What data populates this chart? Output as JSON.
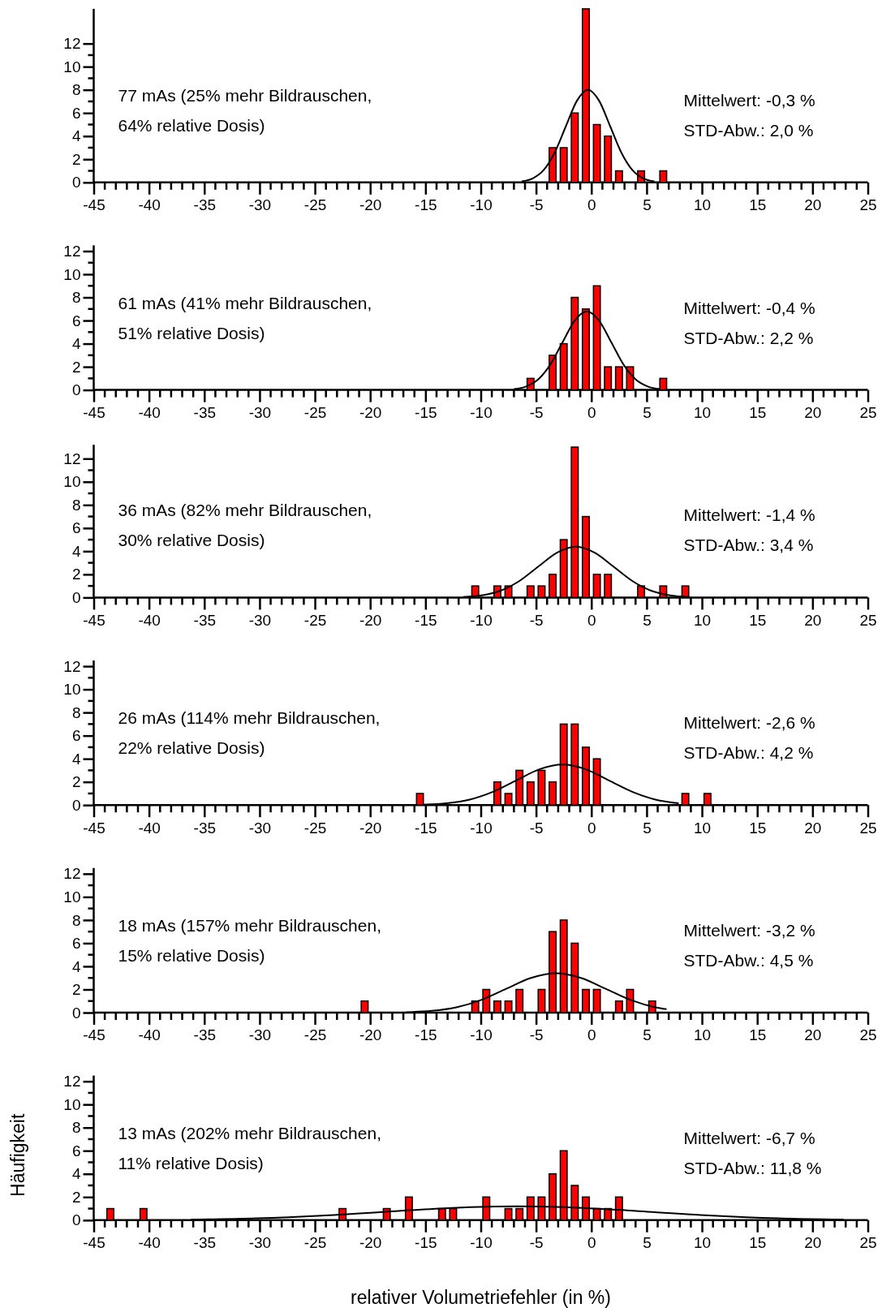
{
  "chart_data": [
    {
      "type": "histogram",
      "bins": [
        -4,
        -3,
        -2,
        -1,
        0,
        1,
        2,
        3,
        4,
        5,
        6,
        7
      ],
      "values": [
        3,
        3,
        6,
        15,
        5,
        4,
        1,
        0,
        1,
        0,
        1
      ],
      "color": "#ff0000",
      "series": [
        {
          "type": "line",
          "color": "#000000",
          "x": [
            -6.3,
            -5.3,
            -4.3,
            -3.3,
            -2.3,
            -1.3,
            -0.3,
            0.7,
            1.7,
            2.7,
            3.7,
            4.7,
            5.7
          ],
          "values": [
            0.09,
            0.35,
            1.08,
            2.6,
            4.86,
            7.06,
            8,
            7.06,
            4.86,
            2.6,
            1.08,
            0.35,
            0.09
          ]
        }
      ],
      "xlim": [
        -45,
        25
      ],
      "xticks": [
        -45,
        -40,
        -35,
        -30,
        -25,
        -20,
        -15,
        -10,
        -5,
        0,
        5,
        10,
        15,
        20,
        25
      ],
      "ylim": [
        0,
        15
      ],
      "yticks": [
        0,
        2,
        4,
        6,
        8,
        10,
        12
      ],
      "annotations": [
        "77 mAs (25% mehr Bildrauschen,",
        "64% relative Dosis)",
        "Mittelwert: -0,3 %",
        "STD-Abw.: 2,0 %"
      ]
    },
    {
      "type": "histogram",
      "bins": [
        -6,
        -5,
        -4,
        -3,
        -2,
        -1,
        0,
        1,
        2,
        3,
        4,
        5,
        6,
        7
      ],
      "values": [
        1,
        0,
        3,
        4,
        8,
        7,
        9,
        2,
        2,
        2,
        0,
        0,
        1
      ],
      "color": "#ff0000",
      "series": [
        {
          "type": "line",
          "color": "#000000",
          "x": [
            -7,
            -5.9,
            -4.8,
            -3.7,
            -2.6,
            -1.5,
            -0.4,
            0.7,
            1.8,
            2.9,
            4,
            5.1,
            6.2
          ],
          "values": [
            0.07,
            0.3,
            0.92,
            2.21,
            4.13,
            6,
            6.8,
            6,
            4.13,
            2.21,
            0.92,
            0.3,
            0.07
          ]
        }
      ],
      "xlim": [
        -45,
        25
      ],
      "xticks": [
        -45,
        -40,
        -35,
        -30,
        -25,
        -20,
        -15,
        -10,
        -5,
        0,
        5,
        10,
        15,
        20,
        25
      ],
      "ylim": [
        0,
        12.5
      ],
      "yticks": [
        0,
        2,
        4,
        6,
        8,
        10,
        12
      ],
      "annotations": [
        "61 mAs (41% mehr Bildrauschen,",
        "51% relative Dosis)",
        "Mittelwert: -0,4 %",
        "STD-Abw.: 2,2 %"
      ]
    },
    {
      "type": "histogram",
      "bins": [
        -11,
        -10,
        -9,
        -8,
        -7,
        -6,
        -5,
        -4,
        -3,
        -2,
        -1,
        0,
        1,
        2,
        3,
        4,
        5,
        6,
        7,
        8,
        9
      ],
      "values": [
        1,
        0,
        1,
        1,
        0,
        1,
        1,
        2,
        5,
        13,
        7,
        2,
        2,
        0,
        0,
        1,
        0,
        1,
        0,
        1
      ],
      "color": "#ff0000",
      "series": [
        {
          "type": "line",
          "color": "#000000",
          "x": [
            -11.6,
            -9.9,
            -8.2,
            -6.5,
            -4.8,
            -3.1,
            -1.4,
            0.3,
            2,
            3.7,
            5.4,
            7.1,
            8.8
          ],
          "values": [
            0.05,
            0.19,
            0.59,
            1.43,
            2.67,
            3.88,
            4.4,
            3.88,
            2.67,
            1.43,
            0.59,
            0.19,
            0.05
          ]
        }
      ],
      "xlim": [
        -45,
        25
      ],
      "xticks": [
        -45,
        -40,
        -35,
        -30,
        -25,
        -20,
        -15,
        -10,
        -5,
        0,
        5,
        10,
        15,
        20,
        25
      ],
      "ylim": [
        0,
        13.2
      ],
      "yticks": [
        0,
        2,
        4,
        6,
        8,
        10,
        12
      ],
      "annotations": [
        "36 mAs (82% mehr Bildrauschen,",
        "30% relative Dosis)",
        "Mittelwert: -1,4 %",
        "STD-Abw.: 3,4 %"
      ]
    },
    {
      "type": "histogram",
      "bins": [
        -16,
        -15,
        -14,
        -13,
        -12,
        -11,
        -10,
        -9,
        -8,
        -7,
        -6,
        -5,
        -4,
        -3,
        -2,
        -1,
        0,
        1,
        2,
        3,
        4,
        5,
        6,
        7,
        8,
        9,
        10,
        11
      ],
      "values": [
        1,
        0,
        0,
        0,
        0,
        0,
        0,
        2,
        1,
        3,
        2,
        3,
        2,
        7,
        7,
        5,
        4,
        0,
        0,
        0,
        0,
        0,
        0,
        0,
        1,
        0,
        1
      ],
      "color": "#ff0000",
      "series": [
        {
          "type": "line",
          "color": "#000000",
          "x": [
            -15.2,
            -13.1,
            -11,
            -8.9,
            -6.8,
            -4.7,
            -2.6,
            -0.5,
            1.6,
            3.7,
            5.8,
            7.9
          ],
          "values": [
            0.04,
            0.15,
            0.47,
            1.14,
            2.12,
            3.09,
            3.5,
            3.09,
            2.12,
            1.14,
            0.47,
            0.15
          ]
        }
      ],
      "xlim": [
        -45,
        25
      ],
      "xticks": [
        -45,
        -40,
        -35,
        -30,
        -25,
        -20,
        -15,
        -10,
        -5,
        0,
        5,
        10,
        15,
        20,
        25
      ],
      "ylim": [
        0,
        12.5
      ],
      "yticks": [
        0,
        2,
        4,
        6,
        8,
        10,
        12
      ],
      "annotations": [
        "26 mAs (114% mehr Bildrauschen,",
        "22% relative Dosis)",
        "Mittelwert: -2,6 %",
        "STD-Abw.: 4,2 %"
      ]
    },
    {
      "type": "histogram",
      "bins": [
        -21,
        -20,
        -19,
        -18,
        -17,
        -16,
        -15,
        -14,
        -13,
        -12,
        -11,
        -10,
        -9,
        -8,
        -7,
        -6,
        -5,
        -4,
        -3,
        -2,
        -1,
        0,
        1,
        2,
        3,
        4,
        5,
        6
      ],
      "values": [
        1,
        0,
        0,
        0,
        0,
        0,
        0,
        0,
        0,
        0,
        1,
        2,
        1,
        1,
        2,
        0,
        2,
        7,
        8,
        6,
        2,
        2,
        0,
        1,
        2,
        0,
        1
      ],
      "color": "#ff0000",
      "series": [
        {
          "type": "line",
          "color": "#000000",
          "x": [
            -16.7,
            -14.45,
            -12.2,
            -9.95,
            -7.7,
            -5.45,
            -3.2,
            -0.95,
            1.3,
            3.55,
            5.8,
            6.8
          ],
          "values": [
            0.04,
            0.15,
            0.46,
            1.1,
            2.06,
            3,
            3.4,
            3,
            2.06,
            1.1,
            0.46,
            0.29
          ]
        }
      ],
      "xlim": [
        -45,
        25
      ],
      "xticks": [
        -45,
        -40,
        -35,
        -30,
        -25,
        -20,
        -15,
        -10,
        -5,
        0,
        5,
        10,
        15,
        20,
        25
      ],
      "ylim": [
        0,
        12.5
      ],
      "yticks": [
        0,
        2,
        4,
        6,
        8,
        10,
        12
      ],
      "annotations": [
        "18 mAs (157% mehr Bildrauschen,",
        "15% relative Dosis)",
        "Mittelwert: -3,2 %",
        "STD-Abw.: 4,5 %"
      ]
    },
    {
      "type": "histogram",
      "bins": [
        -44,
        -43,
        -42,
        -41,
        -40,
        -39,
        -38,
        -37,
        -36,
        -35,
        -34,
        -33,
        -32,
        -31,
        -30,
        -29,
        -28,
        -27,
        -26,
        -25,
        -24,
        -23,
        -22,
        -21,
        -20,
        -19,
        -18,
        -17,
        -16,
        -15,
        -14,
        -13,
        -12,
        -11,
        -10,
        -9,
        -8,
        -7,
        -6,
        -5,
        -4,
        -3,
        -2,
        -1,
        0,
        1,
        2,
        3
      ],
      "values": [
        1,
        0,
        0,
        1,
        0,
        0,
        0,
        0,
        0,
        0,
        0,
        0,
        0,
        0,
        0,
        0,
        0,
        0,
        0,
        0,
        0,
        1,
        0,
        0,
        0,
        1,
        0,
        2,
        0,
        0,
        1,
        1,
        0,
        0,
        2,
        0,
        1,
        1,
        2,
        2,
        4,
        6,
        3,
        2,
        1,
        1,
        2
      ],
      "color": "#ff0000",
      "series": [
        {
          "type": "line",
          "color": "#000000",
          "x": [
            -36.2,
            -30.3,
            -24.4,
            -18.5,
            -12.6,
            -6.7,
            -0.8,
            5.1,
            11,
            16.9,
            22.8
          ],
          "values": [
            0.05,
            0.16,
            0.39,
            0.73,
            1.06,
            1.2,
            1.06,
            0.73,
            0.39,
            0.16,
            0.05
          ]
        }
      ],
      "xlim": [
        -45,
        25
      ],
      "xticks": [
        -45,
        -40,
        -35,
        -30,
        -25,
        -20,
        -15,
        -10,
        -5,
        0,
        5,
        10,
        15,
        20,
        25
      ],
      "ylim": [
        0,
        12.5
      ],
      "yticks": [
        0,
        2,
        4,
        6,
        8,
        10,
        12
      ],
      "xlabel": "relativer Volumetriefehler (in %)",
      "ylabel": "Häufigkeit",
      "annotations": [
        "13 mAs (202% mehr Bildrauschen,",
        "11% relative Dosis)",
        "Mittelwert: -6,7 %",
        "STD-Abw.: 11,8 %"
      ]
    }
  ]
}
